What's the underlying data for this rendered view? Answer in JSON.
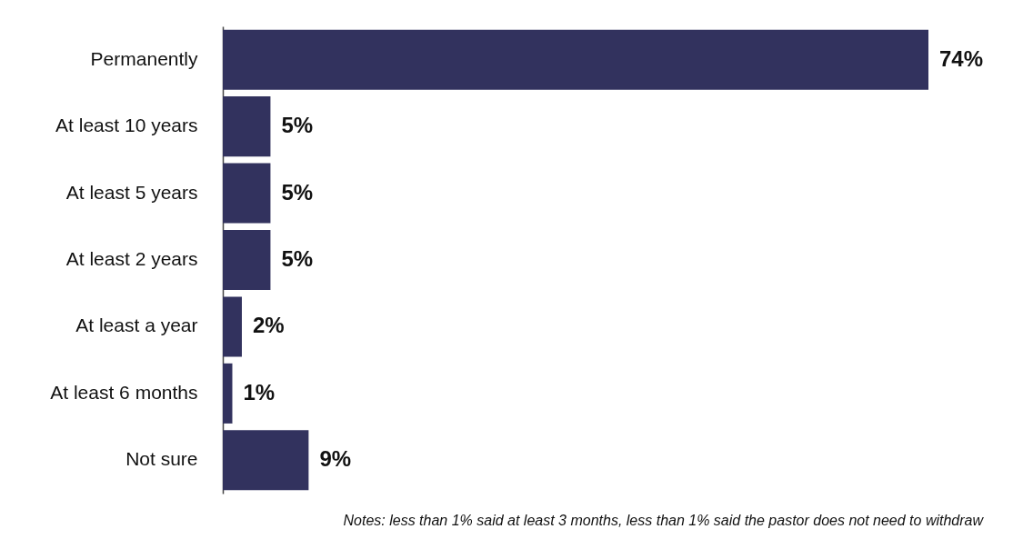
{
  "chart_data": {
    "type": "bar",
    "orientation": "horizontal",
    "tick_labels": "y",
    "categories": [
      "Permanently",
      "At least 10 years",
      "At least 5 years",
      "At least 2 years",
      "At least a year",
      "At least 6 months",
      "Not sure"
    ],
    "values": [
      74,
      5,
      5,
      5,
      2,
      1,
      9
    ],
    "value_labels": [
      "74%",
      "5%",
      "5%",
      "5%",
      "2%",
      "1%",
      "9%"
    ],
    "color": "#32325e",
    "annotations": [
      "Notes: less than 1% said at least 3 months, less than 1% said the pastor does not need to withdraw"
    ]
  }
}
